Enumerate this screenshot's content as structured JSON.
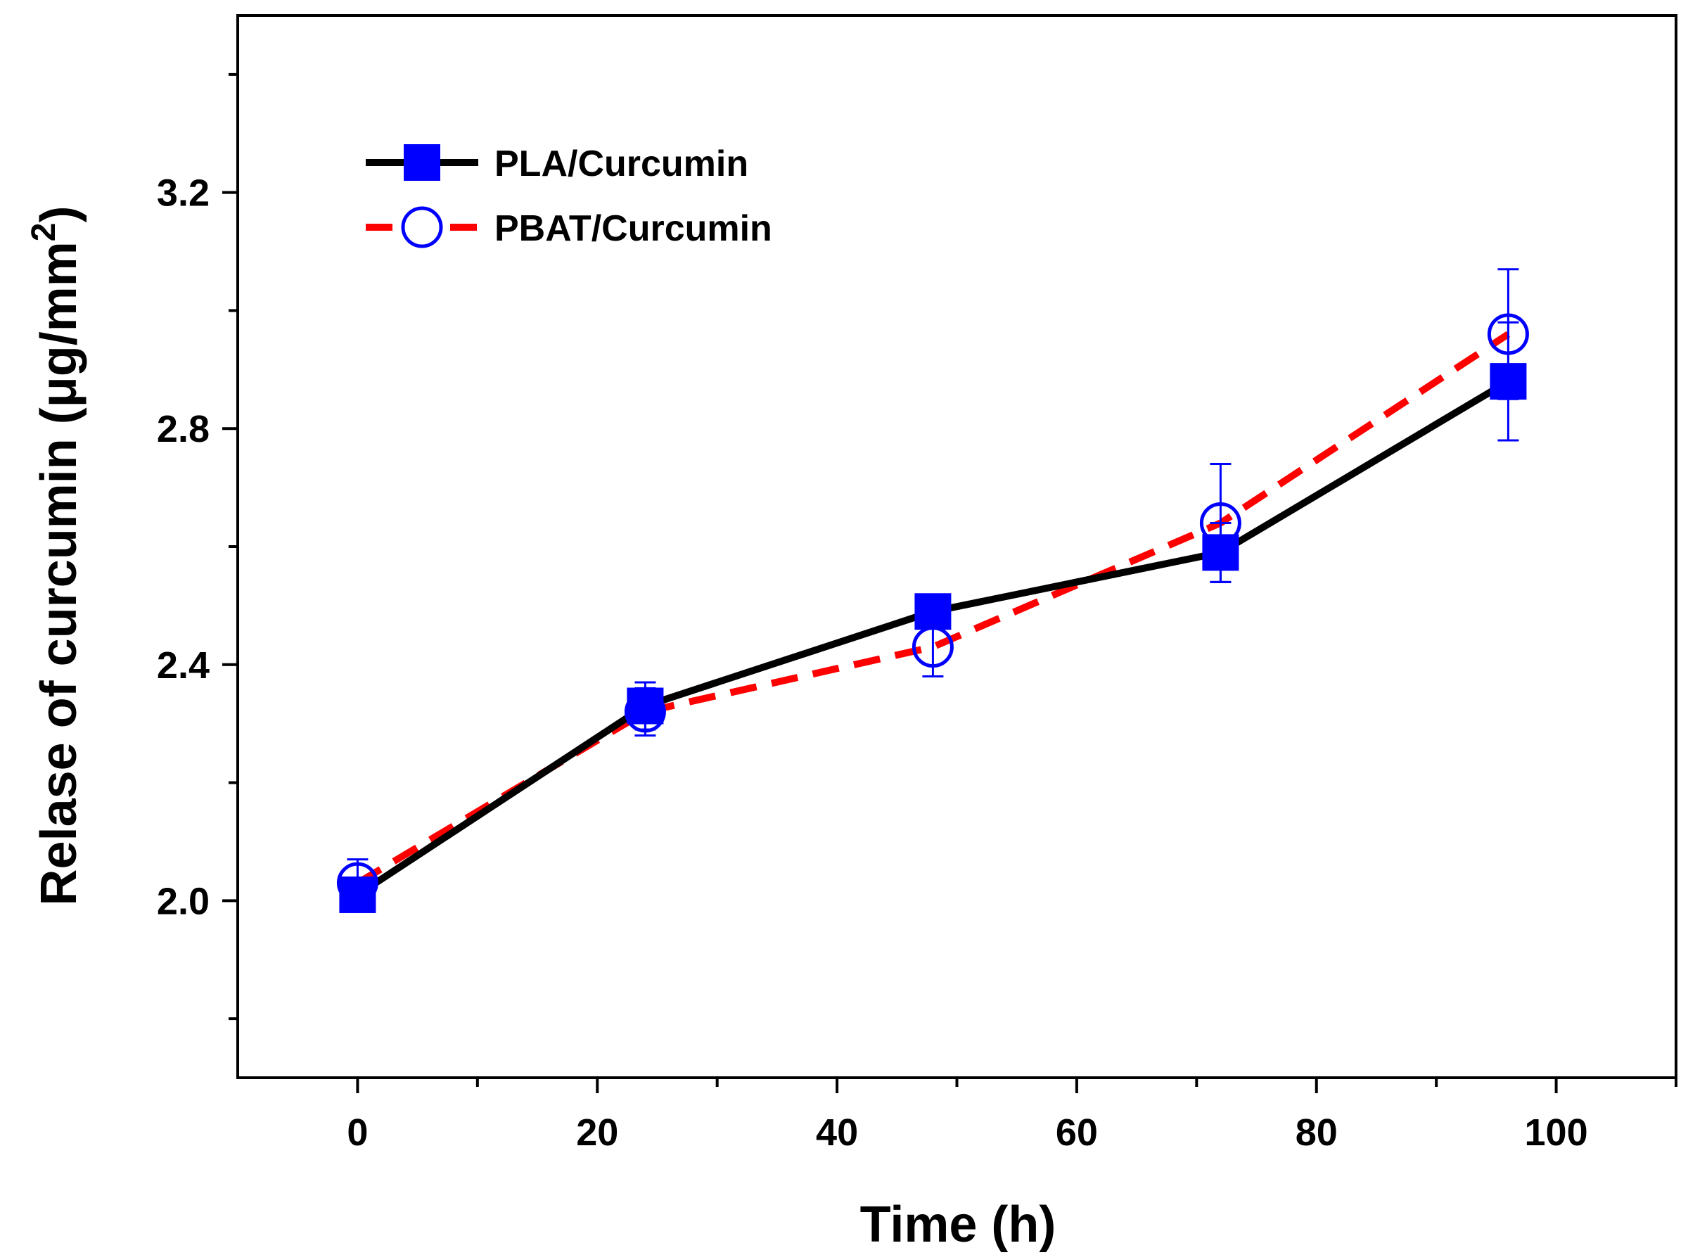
{
  "chart_data": {
    "type": "line",
    "xlabel": "Time (h)",
    "ylabel_main": "Relase of curcumin (",
    "ylabel_unit": "μg/mm",
    "ylabel_sup": "2",
    "ylabel_close": ")",
    "xlim": [
      -10,
      110
    ],
    "ylim": [
      1.7,
      3.5
    ],
    "x_ticks_major": [
      0,
      20,
      40,
      60,
      80,
      100
    ],
    "x_ticks_minor": [
      10,
      30,
      50,
      70,
      90,
      110
    ],
    "x_tick_labels": [
      "0",
      "20",
      "40",
      "60",
      "80",
      "100"
    ],
    "y_ticks_major": [
      2.0,
      2.4,
      2.8,
      3.2
    ],
    "y_ticks_minor": [
      1.8,
      2.2,
      2.6,
      3.0,
      3.4
    ],
    "y_tick_labels": [
      "2.0",
      "2.4",
      "2.8",
      "3.2"
    ],
    "grid": false,
    "legend_position": "top-left",
    "series": [
      {
        "name": "PLA/Curcumin",
        "line_color": "#000000",
        "marker_color": "#0000ff",
        "marker": "filled-square",
        "line_style": "solid",
        "x": [
          0,
          24,
          48,
          72,
          96
        ],
        "y": [
          2.01,
          2.33,
          2.49,
          2.59,
          2.88
        ],
        "err": [
          0,
          0.04,
          0,
          0.05,
          0.1
        ]
      },
      {
        "name": "PBAT/Curcumin",
        "line_color": "#ff0000",
        "marker_color": "#0000ff",
        "marker": "open-circle",
        "line_style": "dashed",
        "x": [
          0,
          24,
          48,
          72,
          96
        ],
        "y": [
          2.03,
          2.32,
          2.43,
          2.64,
          2.96
        ],
        "err": [
          0.04,
          0.04,
          0.05,
          0.1,
          0.11
        ]
      }
    ]
  }
}
